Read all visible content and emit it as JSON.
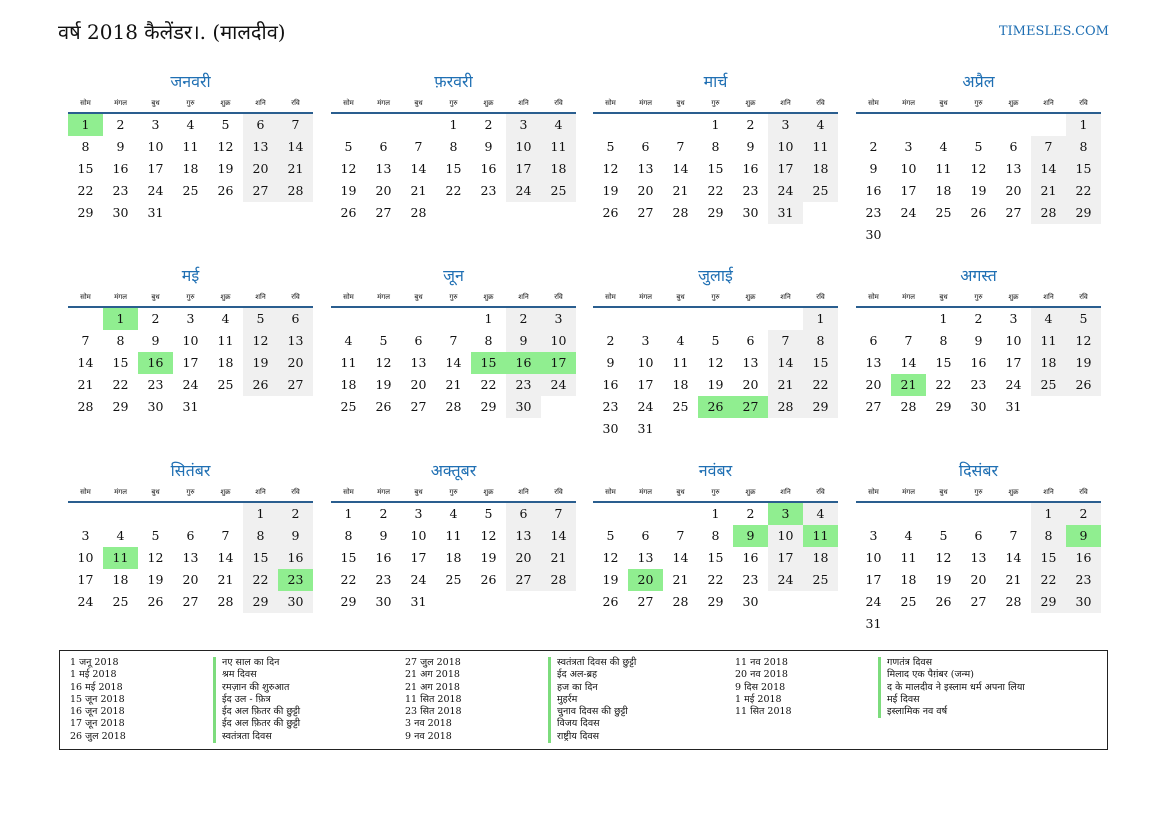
{
  "header": {
    "title": "वर्ष 2018 कैलेंडर।. (मालदीव)",
    "site": "TIMESLES.COM"
  },
  "weekdays": [
    "सोम",
    "मंगल",
    "बुध",
    "गुरु",
    "शुक्र",
    "शनि",
    "रवि"
  ],
  "colors": {
    "accent": "#1f6fb3",
    "holiday": "#90ee90",
    "weekend": "#f0f0f0"
  },
  "months": [
    {
      "name": "जनवरी",
      "offset": 0,
      "days": 31,
      "holidays": [
        1
      ]
    },
    {
      "name": "फ़रवरी",
      "offset": 3,
      "days": 28,
      "holidays": []
    },
    {
      "name": "मार्च",
      "offset": 3,
      "days": 31,
      "holidays": []
    },
    {
      "name": "अप्रैल",
      "offset": 6,
      "days": 30,
      "holidays": []
    },
    {
      "name": "मई",
      "offset": 1,
      "days": 31,
      "holidays": [
        1,
        16
      ]
    },
    {
      "name": "जून",
      "offset": 4,
      "days": 30,
      "holidays": [
        15,
        16,
        17
      ]
    },
    {
      "name": "जुलाई",
      "offset": 6,
      "days": 31,
      "holidays": [
        26,
        27
      ]
    },
    {
      "name": "अगस्त",
      "offset": 2,
      "days": 31,
      "holidays": [
        21
      ]
    },
    {
      "name": "सितंबर",
      "offset": 5,
      "days": 30,
      "holidays": [
        11,
        23
      ]
    },
    {
      "name": "अक्तूबर",
      "offset": 0,
      "days": 31,
      "holidays": []
    },
    {
      "name": "नवंबर",
      "offset": 3,
      "days": 30,
      "holidays": [
        3,
        9,
        11,
        20
      ]
    },
    {
      "name": "दिसंबर",
      "offset": 5,
      "days": 31,
      "holidays": [
        9
      ]
    }
  ],
  "holiday_columns": [
    {
      "dates": [
        "1 जनू 2018",
        "1 मई 2018",
        "16 मई 2018",
        "15 जून 2018",
        "16 जून 2018",
        "17 जून 2018",
        "26 जुल 2018"
      ],
      "names": [
        "नए साल का दिन",
        "श्रम दिवस",
        "रमज़ान की शुरुआत",
        "ईद उल - फ़ित्र",
        "ईद अल फ़ितर की छुट्टी",
        "ईद अल फ़ितर की छुट्टी",
        "स्वतंत्रता दिवस"
      ]
    },
    {
      "dates": [
        "27 जुल 2018",
        "21 अग 2018",
        "21 अग 2018",
        "11 सित 2018",
        "23 सित 2018",
        "3 नव 2018",
        "9 नव 2018"
      ],
      "names": [
        "स्वतंत्रता दिवस की छुट्टी",
        "ईद अल-ब्रह",
        "हज का दिन",
        "मुहर्रम",
        "चुनाव दिवस की छुट्टी",
        "विजय दिवस",
        "राष्ट्रीय दिवस"
      ]
    },
    {
      "dates": [
        "11 नव 2018",
        "20 नव 2018",
        "9 दिस 2018",
        "1 मई 2018",
        "11 सित 2018"
      ],
      "names": [
        "गणतंत्र दिवस",
        "मिलाद एक पैग़ंबर (जन्म)",
        "द के मालदीव ने इस्लाम धर्म अपना लिया",
        "मई दिवस",
        "इस्लामिक नव वर्ष"
      ]
    }
  ]
}
